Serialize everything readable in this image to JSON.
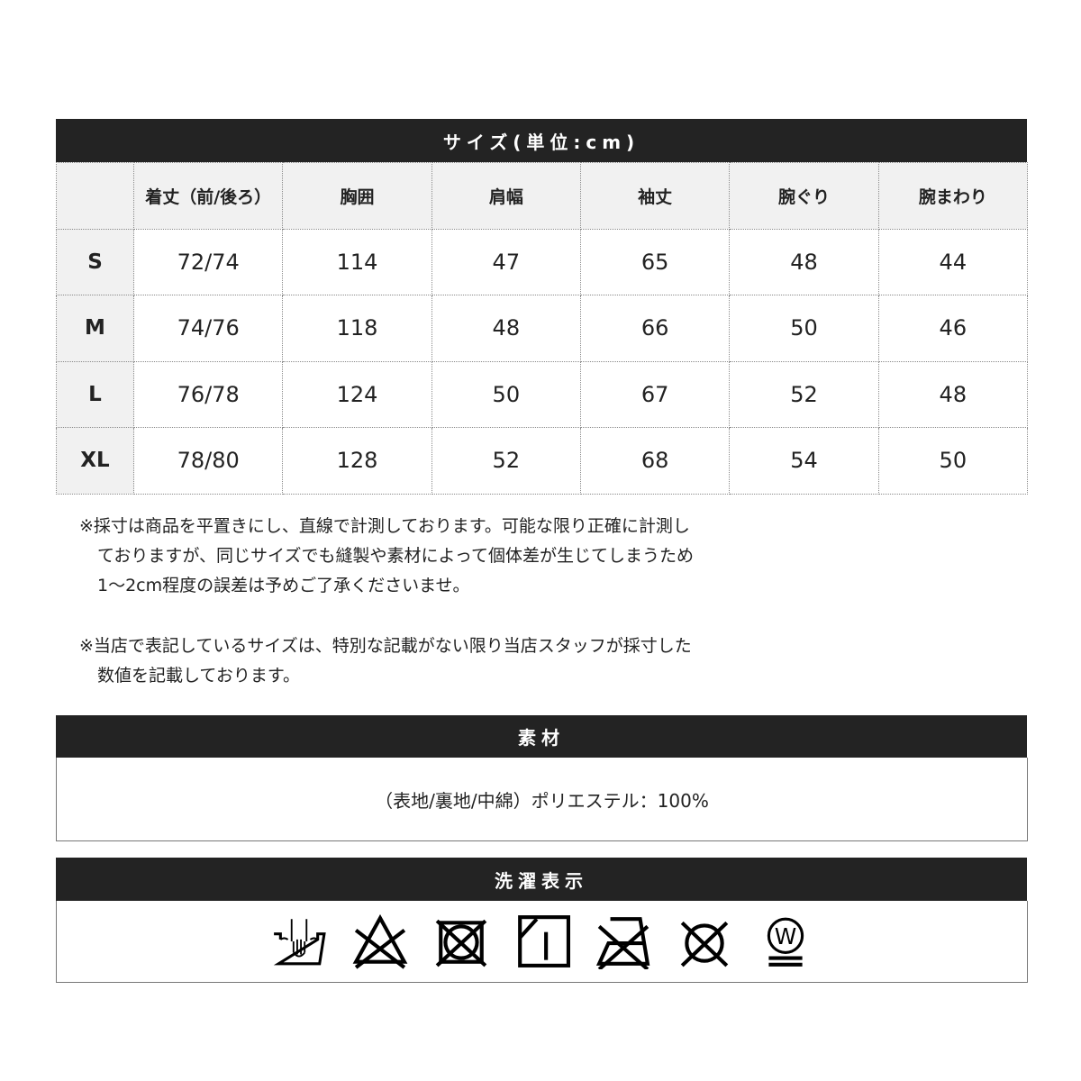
{
  "size_table": {
    "title": "サイズ(単位:cm)",
    "headers": [
      "",
      "着丈（前/後ろ）",
      "胸囲",
      "肩幅",
      "袖丈",
      "腕ぐり",
      "腕まわり"
    ],
    "rows": [
      {
        "size": "S",
        "values": [
          "72/74",
          "114",
          "47",
          "65",
          "48",
          "44"
        ]
      },
      {
        "size": "M",
        "values": [
          "74/76",
          "118",
          "48",
          "66",
          "50",
          "46"
        ]
      },
      {
        "size": "L",
        "values": [
          "76/78",
          "124",
          "50",
          "67",
          "52",
          "48"
        ]
      },
      {
        "size": "XL",
        "values": [
          "78/80",
          "128",
          "52",
          "68",
          "54",
          "50"
        ]
      }
    ]
  },
  "notes": {
    "note1": [
      "※採寸は商品を平置きにし、直線で計測しております。可能な限り正確に計測し",
      "ておりますが、同じサイズでも縫製や素材によって個体差が生じてしまうため",
      "1～2cm程度の誤差は予めご了承くださいませ。"
    ],
    "note2": [
      "※当店で表記しているサイズは、特別な記載がない限り当店スタッフが採寸した",
      "数値を記載しております。"
    ]
  },
  "material": {
    "title": "素材",
    "text": "（表地/裏地/中綿）ポリエステル：100%"
  },
  "care": {
    "title": "洗濯表示",
    "icons": [
      "hand-wash-icon",
      "no-bleach-icon",
      "no-tumble-dry-icon",
      "line-dry-shade-icon",
      "no-iron-icon",
      "no-dry-clean-icon",
      "wet-clean-very-mild-icon"
    ],
    "wet_clean_letter": "W"
  }
}
